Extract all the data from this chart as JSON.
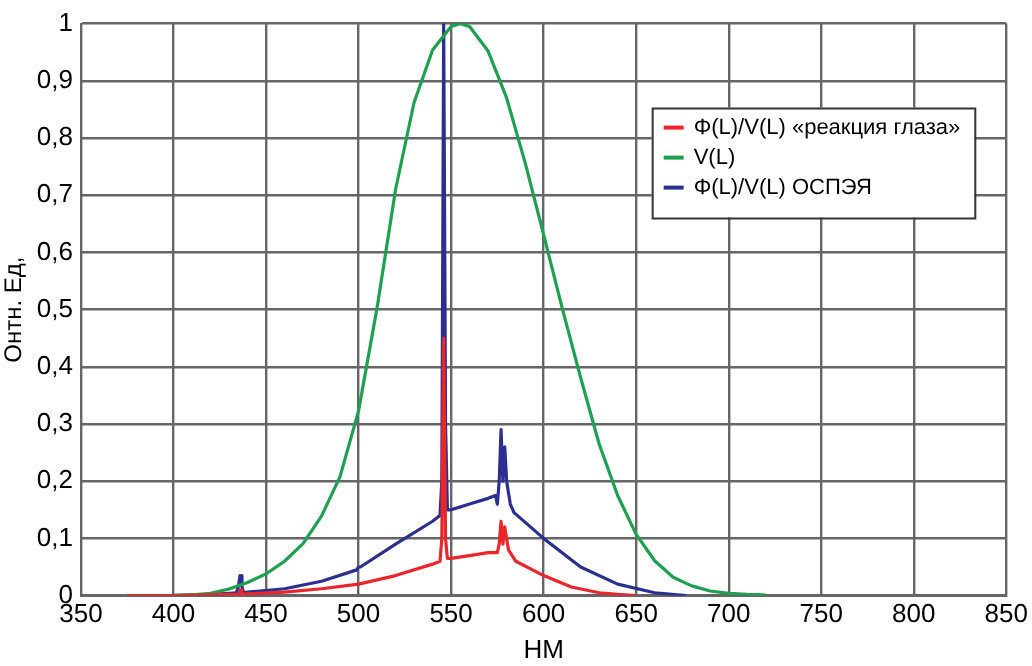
{
  "chart_data": {
    "type": "line",
    "xlabel": "НМ",
    "ylabel": "Онтн. Ед,",
    "xlim": [
      350,
      850
    ],
    "xticks": [
      350,
      400,
      450,
      500,
      550,
      600,
      650,
      700,
      750,
      800,
      850
    ],
    "ylim": [
      0,
      1
    ],
    "yticks": [
      {
        "value": 0,
        "label": "0"
      },
      {
        "value": 0.1,
        "label": "0,1"
      },
      {
        "value": 0.2,
        "label": "0,2"
      },
      {
        "value": 0.3,
        "label": "0,3"
      },
      {
        "value": 0.4,
        "label": "0,4"
      },
      {
        "value": 0.5,
        "label": "0,5"
      },
      {
        "value": 0.6,
        "label": "0,6"
      },
      {
        "value": 0.7,
        "label": "0,7"
      },
      {
        "value": 0.8,
        "label": "0,8"
      },
      {
        "value": 0.9,
        "label": "0,9"
      },
      {
        "value": 1,
        "label": "1"
      }
    ],
    "grid": true,
    "legend": "top right",
    "marker": "none",
    "line_style": "solid",
    "series": [
      {
        "name": "Φ(L)/V(L) «реакция глаза»",
        "color": "#e8262b",
        "x": [
          375,
          400,
          430,
          435,
          436,
          437,
          440,
          460,
          480,
          500,
          520,
          540,
          544,
          545,
          546,
          547,
          548,
          550,
          560,
          570,
          575,
          576,
          577,
          578,
          579,
          580,
          581,
          583,
          585,
          600,
          615,
          630,
          640,
          650
        ],
        "values": [
          0,
          0,
          0.002,
          0.002,
          0.01,
          0.002,
          0.003,
          0.006,
          0.012,
          0.02,
          0.035,
          0.055,
          0.06,
          0.1,
          0.45,
          0.1,
          0.065,
          0.065,
          0.07,
          0.075,
          0.075,
          0.09,
          0.13,
          0.09,
          0.12,
          0.1,
          0.08,
          0.07,
          0.06,
          0.035,
          0.015,
          0.005,
          0.002,
          0
        ]
      },
      {
        "name": "V(L)",
        "color": "#1fa050",
        "x": [
          400,
          410,
          420,
          430,
          440,
          450,
          460,
          470,
          480,
          490,
          500,
          510,
          520,
          530,
          540,
          550,
          555,
          560,
          570,
          580,
          590,
          600,
          610,
          620,
          630,
          640,
          650,
          660,
          670,
          680,
          690,
          700,
          710,
          720
        ],
        "values": [
          0.0004,
          0.0012,
          0.004,
          0.0116,
          0.023,
          0.038,
          0.06,
          0.091,
          0.139,
          0.208,
          0.323,
          0.503,
          0.71,
          0.862,
          0.954,
          0.995,
          1,
          0.995,
          0.952,
          0.87,
          0.757,
          0.631,
          0.503,
          0.381,
          0.265,
          0.175,
          0.107,
          0.061,
          0.032,
          0.017,
          0.008,
          0.004,
          0.002,
          0.001
        ]
      },
      {
        "name": "Φ(L)/V(L) ОСПЭЯ",
        "color": "#2b2f8f",
        "x": [
          400,
          420,
          430,
          434,
          435,
          436,
          437,
          438,
          440,
          460,
          480,
          499,
          500,
          501,
          520,
          540,
          544,
          545,
          546,
          547,
          548,
          550,
          560,
          570,
          574,
          575,
          576,
          577,
          578,
          579,
          580,
          581,
          582,
          584,
          600,
          620,
          640,
          660,
          677
        ],
        "values": [
          0,
          0.002,
          0.004,
          0.005,
          0.015,
          0.035,
          0.015,
          0.005,
          0.006,
          0.012,
          0.025,
          0.045,
          0.05,
          0.05,
          0.09,
          0.13,
          0.14,
          0.2,
          1,
          0.3,
          0.15,
          0.15,
          0.16,
          0.17,
          0.175,
          0.16,
          0.2,
          0.29,
          0.2,
          0.26,
          0.2,
          0.18,
          0.16,
          0.145,
          0.1,
          0.05,
          0.02,
          0.005,
          0
        ]
      }
    ]
  }
}
